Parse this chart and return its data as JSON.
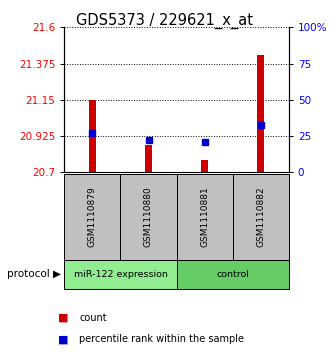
{
  "title": "GDS5373 / 229621_x_at",
  "samples": [
    "GSM1110879",
    "GSM1110880",
    "GSM1110881",
    "GSM1110882"
  ],
  "red_bar_values": [
    21.15,
    20.87,
    20.78,
    21.43
  ],
  "blue_square_percentiles": [
    27,
    22,
    21,
    33
  ],
  "y_min": 20.7,
  "y_max": 21.6,
  "y_ticks": [
    20.7,
    20.925,
    21.15,
    21.375,
    21.6
  ],
  "y_tick_labels": [
    "20.7",
    "20.925",
    "21.15",
    "21.375",
    "21.6"
  ],
  "right_y_ticks": [
    0,
    25,
    50,
    75,
    100
  ],
  "right_y_labels": [
    "0",
    "25",
    "50",
    "75",
    "100%"
  ],
  "groups": [
    {
      "label": "miR-122 expression",
      "indices": [
        0,
        1
      ],
      "color": "#90EE90"
    },
    {
      "label": "control",
      "indices": [
        2,
        3
      ],
      "color": "#66CC66"
    }
  ],
  "bar_color": "#CC0000",
  "square_color": "#0000CC",
  "bar_width": 0.12,
  "label_bg": "#C0C0C0",
  "title_fontsize": 10.5
}
